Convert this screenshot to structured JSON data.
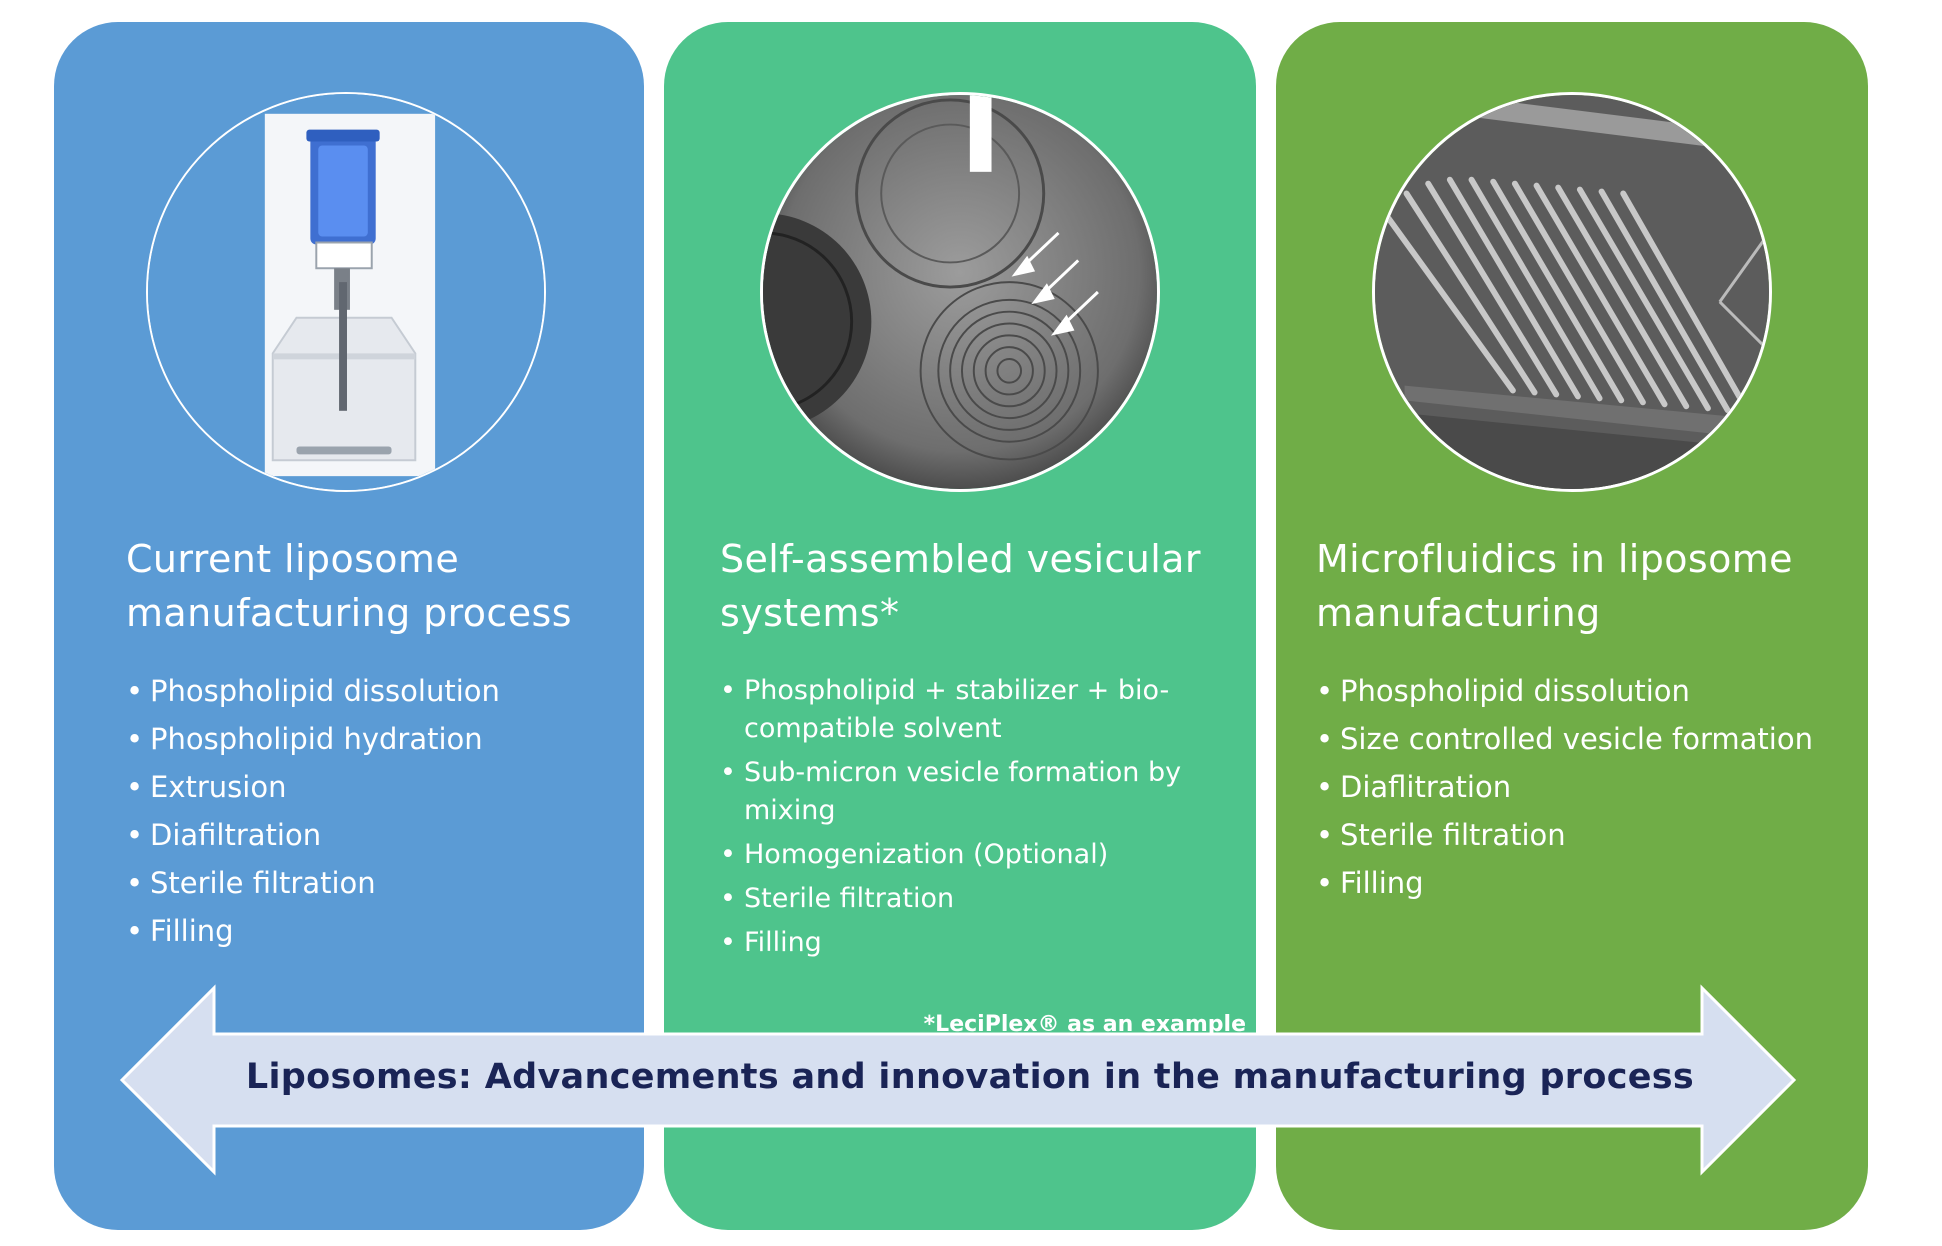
{
  "colors": {
    "panel1": "#5b9bd5",
    "panel2": "#4ec48c",
    "panel3": "#70ad47",
    "arrow_fill": "#d6dff0",
    "arrow_text": "#1a2456"
  },
  "panels": [
    {
      "title": "Current liposome manufacturing process",
      "items": [
        "Phospholipid dissolution",
        "Phospholipid hydration",
        "Extrusion",
        "Diafiltration",
        "Sterile filtration",
        "Filling"
      ]
    },
    {
      "title": "Self-assembled vesicular systems*",
      "items": [
        "Phospholipid + stabilizer + bio-compatible solvent",
        "Sub-micron vesicle formation by mixing",
        "Homogenization (Optional)",
        "Sterile filtration",
        "Filling"
      ],
      "footnote": "*LeciPlex® as an example"
    },
    {
      "title": "Microfluidics in liposome manufacturing",
      "items": [
        "Phospholipid dissolution",
        "Size controlled vesicle formation",
        "Diaflitration",
        "Sterile filtration",
        "Filling"
      ]
    }
  ],
  "arrow": {
    "label": "Liposomes: Advancements and innovation in the manufacturing process"
  }
}
